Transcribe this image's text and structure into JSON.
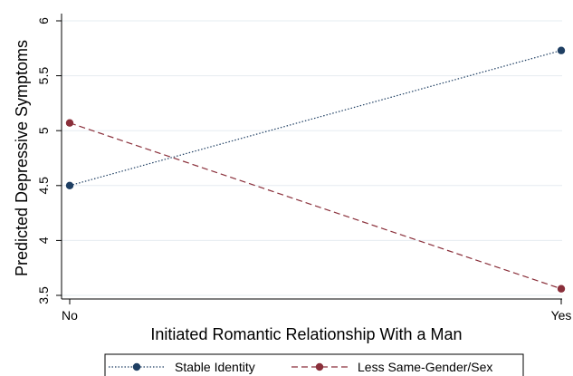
{
  "chart_data": {
    "type": "line",
    "categories": [
      "No",
      "Yes"
    ],
    "series": [
      {
        "name": "Stable Identity",
        "values": [
          4.5,
          5.73
        ],
        "color": "#1f3f63",
        "line_style": "dotted",
        "marker": "circle"
      },
      {
        "name": "Less Same-Gender/Sex",
        "values": [
          5.07,
          3.56
        ],
        "color": "#8a2f3a",
        "line_style": "dashed",
        "marker": "circle"
      }
    ],
    "title": "",
    "xlabel": "Initiated Romantic Relationship With a Man",
    "ylabel": "Predicted Depressive Symptoms",
    "ylim": [
      3.5,
      6
    ],
    "yticks": [
      "3.5",
      "4",
      "4.5",
      "5",
      "5.5",
      "6"
    ],
    "xticks": [
      "No",
      "Yes"
    ],
    "grid": true,
    "legend_position": "bottom"
  }
}
